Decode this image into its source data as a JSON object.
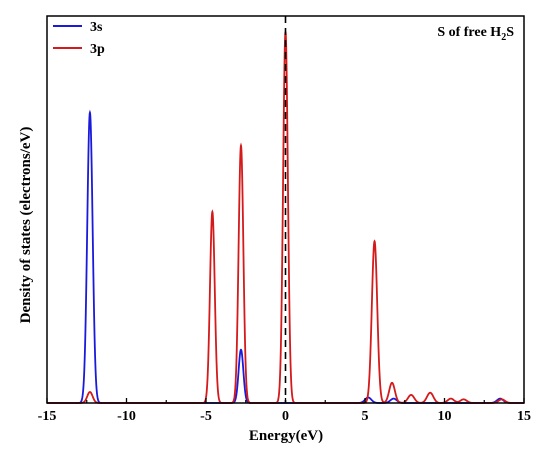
{
  "chart_data": {
    "type": "line",
    "title": "S of free H2S",
    "title_parts": {
      "main": "S of free H",
      "sub": "2",
      "tail": "S"
    },
    "xlabel": "Energy(eV)",
    "ylabel": "Density of states (electrons/eV)",
    "xlim": [
      -15,
      15
    ],
    "ylim": [
      0,
      1
    ],
    "x_ticks": [
      "-15",
      "-10",
      "-5",
      "0",
      "5",
      "10",
      "15"
    ],
    "y_ticks": [],
    "grid": false,
    "legend_position": "top-left",
    "reference_line": {
      "x": 0,
      "style": "dashed"
    },
    "series": [
      {
        "name": "3s",
        "color": "#1a1adb",
        "peaks": [
          {
            "x": -12.3,
            "height": 0.79,
            "width": 0.17
          },
          {
            "x": -2.8,
            "height": 0.145,
            "width": 0.15
          },
          {
            "x": 5.2,
            "height": 0.015,
            "width": 0.2
          },
          {
            "x": 6.8,
            "height": 0.012,
            "width": 0.2
          },
          {
            "x": 13.5,
            "height": 0.012,
            "width": 0.2
          }
        ]
      },
      {
        "name": "3p",
        "color": "#d41a1a",
        "peaks": [
          {
            "x": -12.3,
            "height": 0.03,
            "width": 0.17
          },
          {
            "x": -4.6,
            "height": 0.52,
            "width": 0.15
          },
          {
            "x": -2.8,
            "height": 0.7,
            "width": 0.15
          },
          {
            "x": 0.0,
            "height": 1.01,
            "width": 0.15
          },
          {
            "x": 5.6,
            "height": 0.44,
            "width": 0.17
          },
          {
            "x": 6.7,
            "height": 0.055,
            "width": 0.18
          },
          {
            "x": 7.9,
            "height": 0.022,
            "width": 0.2
          },
          {
            "x": 9.1,
            "height": 0.028,
            "width": 0.2
          },
          {
            "x": 10.4,
            "height": 0.012,
            "width": 0.2
          },
          {
            "x": 11.2,
            "height": 0.01,
            "width": 0.2
          },
          {
            "x": 13.6,
            "height": 0.01,
            "width": 0.2
          }
        ]
      }
    ]
  }
}
